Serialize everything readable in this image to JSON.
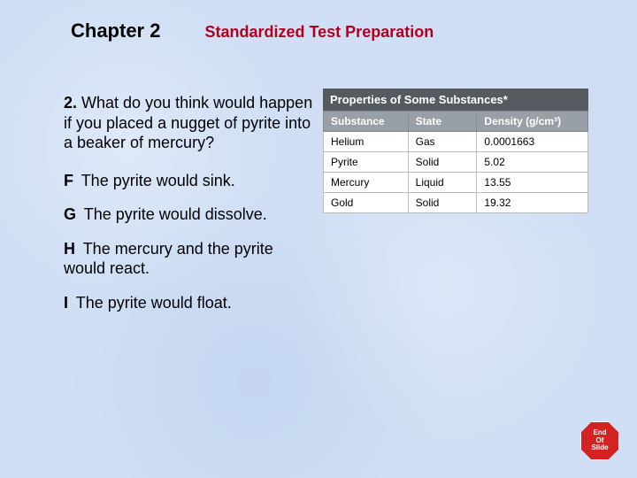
{
  "header": {
    "chapter": "Chapter 2",
    "subtitle": "Standardized Test Preparation",
    "subtitle_color": "#b00020"
  },
  "question": {
    "number": "2.",
    "text": "What do you think would happen if you placed a nugget of pyrite into a beaker of mercury?"
  },
  "answers": [
    {
      "letter": "F",
      "text": "The pyrite would sink."
    },
    {
      "letter": "G",
      "text": "The pyrite would dissolve."
    },
    {
      "letter": "H",
      "text": "The mercury and the pyrite would react."
    },
    {
      "letter": "I",
      "text": "The pyrite would float."
    }
  ],
  "table": {
    "title": "Properties of Some Substances*",
    "title_bg": "#555a60",
    "header_bg": "#999fa6",
    "columns": [
      "Substance",
      "State",
      "Density (g/cm³)"
    ],
    "rows": [
      [
        "Helium",
        "Gas",
        "0.0001663"
      ],
      [
        "Pyrite",
        "Solid",
        "5.02"
      ],
      [
        "Mercury",
        "Liquid",
        "13.55"
      ],
      [
        "Gold",
        "Solid",
        "19.32"
      ]
    ]
  },
  "end_slide": {
    "line1": "End",
    "line2": "Of",
    "line3": "Slide",
    "bg": "#d32222"
  }
}
